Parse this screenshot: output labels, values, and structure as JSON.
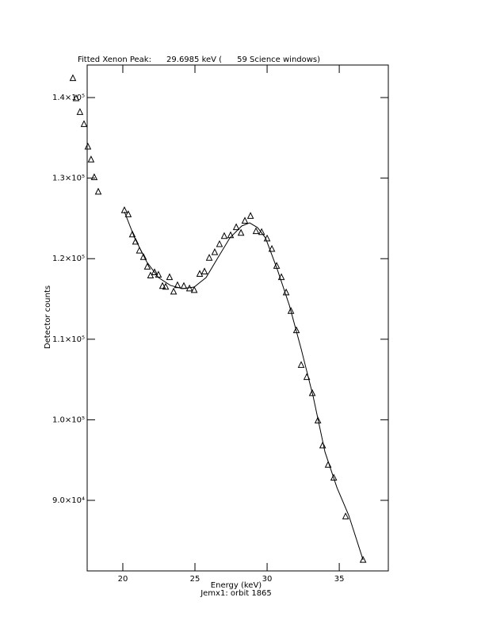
{
  "chart_data": {
    "type": "scatter",
    "title": "Fitted Xenon Peak:      29.6985 keV (      59 Science windows)",
    "xlabel": "Energy (keV)",
    "subtitle": "Jemx1: orbit 1865",
    "ylabel": "Detector counts",
    "xlim": [
      17.53,
      38.4
    ],
    "ylim": [
      81240,
      144040
    ],
    "xticks": [
      20,
      25,
      30,
      35
    ],
    "yticks": [
      {
        "value": 90000,
        "label": "9.0×10⁴"
      },
      {
        "value": 100000,
        "label": "1.0×10⁵"
      },
      {
        "value": 110000,
        "label": "1.1×10⁵"
      },
      {
        "value": 120000,
        "label": "1.2×10⁵"
      },
      {
        "value": 130000,
        "label": "1.3×10⁵"
      },
      {
        "value": 140000,
        "label": "1.4×10⁵"
      }
    ],
    "color": "#000000",
    "points": {
      "x": [
        16.54,
        16.76,
        17.03,
        17.31,
        17.58,
        17.8,
        18.02,
        18.3,
        20.11,
        20.38,
        20.66,
        20.88,
        21.15,
        21.43,
        21.7,
        21.92,
        22.2,
        22.47,
        22.75,
        22.97,
        23.24,
        23.52,
        23.79,
        24.23,
        24.62,
        24.95,
        25.33,
        25.66,
        25.99,
        26.37,
        26.7,
        27.03,
        27.47,
        27.86,
        28.19,
        28.46,
        28.85,
        29.23,
        29.62,
        30.0,
        30.33,
        30.66,
        30.99,
        31.32,
        31.65,
        32.03,
        32.36,
        32.75,
        33.13,
        33.52,
        33.85,
        34.23,
        34.62,
        35.44,
        36.65
      ],
      "y": [
        142400,
        139900,
        138200,
        136700,
        133900,
        132300,
        130100,
        128300,
        126000,
        125500,
        123000,
        122100,
        121000,
        120200,
        119000,
        117900,
        118300,
        118000,
        116600,
        116500,
        117700,
        115900,
        116700,
        116600,
        116300,
        116100,
        118100,
        118400,
        120100,
        120800,
        121800,
        122800,
        122900,
        123900,
        123200,
        124700,
        125300,
        123400,
        123300,
        122500,
        121200,
        119100,
        117700,
        115800,
        113500,
        111100,
        106800,
        105300,
        103300,
        99900,
        96800,
        94400,
        92800,
        88000,
        82600
      ]
    },
    "fit": {
      "x": [
        20.11,
        20.82,
        21.65,
        22.47,
        23.3,
        24.12,
        24.95,
        25.77,
        26.59,
        27.42,
        28.24,
        28.79,
        29.34,
        29.89,
        30.71,
        31.54,
        32.36,
        33.19,
        34.01,
        34.84,
        35.66,
        36.65
      ],
      "y": [
        125830,
        122580,
        119630,
        117660,
        116680,
        116280,
        116480,
        117660,
        120120,
        122580,
        124060,
        124450,
        123860,
        122580,
        118650,
        114220,
        108800,
        102900,
        96010,
        91580,
        88130,
        82610
      ]
    }
  }
}
